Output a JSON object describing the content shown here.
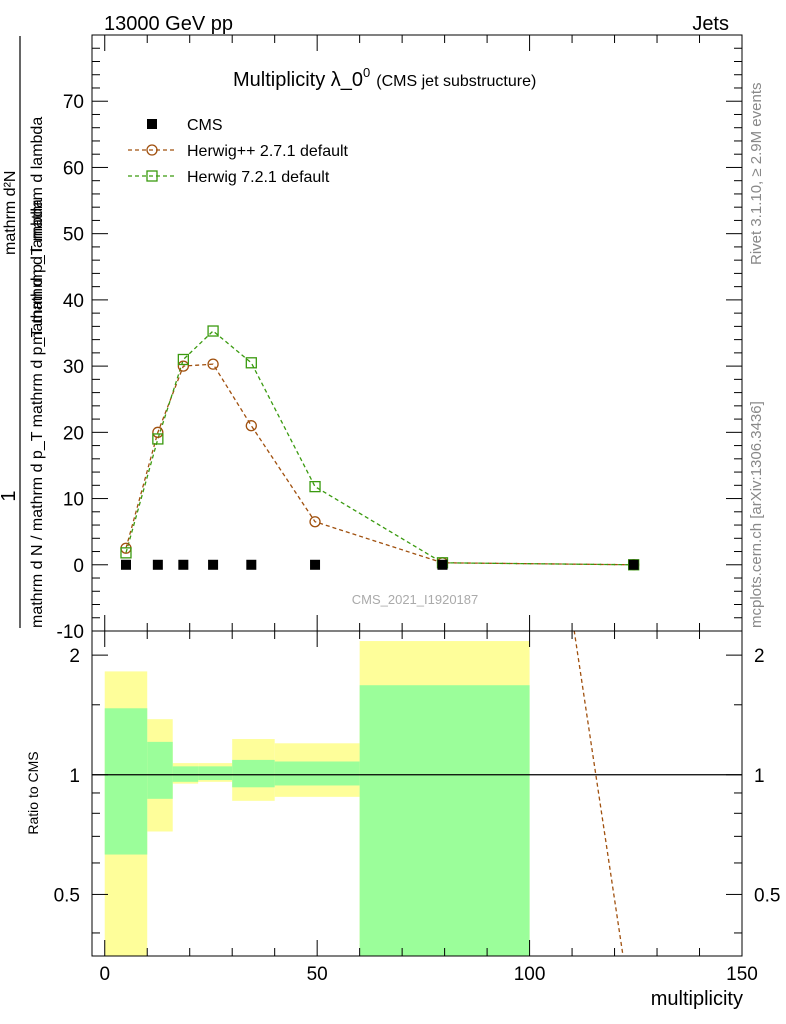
{
  "header": {
    "left": "13000 GeV pp",
    "right": "Jets"
  },
  "side_text": {
    "rivet": "Rivet 3.1.10, ≥ 2.9M events",
    "mcplots": "mcplots.cern.ch [arXiv:1306.3436]"
  },
  "analysis_id": "CMS_2021_I1920187",
  "colors": {
    "data": "#000000",
    "herwigpp": "#a0500e",
    "herwig7": "#3a9a0f",
    "band_inner": "#9bfe9a",
    "band_outer": "#fefe9a"
  },
  "chart_data": [
    {
      "type": "line",
      "title_main": "Multiplicity λ_0",
      "title_sup": "0",
      "title_sub": "(CMS jet substructure)",
      "ylabel_numerator": "1",
      "ylabel_denominator": "mathrm d N / mathrm d p_T mathrm d p_T mathrm d lambda",
      "ylabel_top": "mathrm d²N",
      "ylabel_top_full": "mathrm d p_T mathrm d lambda",
      "xlim": [
        -3,
        150
      ],
      "ylim": [
        -10,
        80
      ],
      "yticks": [
        -10,
        0,
        10,
        20,
        30,
        40,
        50,
        60,
        70
      ],
      "xticks": [
        0,
        50,
        100,
        150
      ],
      "legend_position": "top-left",
      "series": [
        {
          "name": "CMS",
          "marker": "filled-square",
          "x": [
            5,
            12.5,
            18.5,
            25.5,
            34.5,
            49.5,
            79.5,
            124.5
          ],
          "y": [
            0,
            0,
            0,
            0,
            0,
            0,
            0,
            0
          ]
        },
        {
          "name": "Herwig++ 2.7.1 default",
          "marker": "open-circle",
          "x": [
            5,
            12.5,
            18.5,
            25.5,
            34.5,
            49.5,
            79.5,
            124.5
          ],
          "y": [
            2.5,
            20,
            30,
            30.3,
            21,
            6.5,
            0.3,
            0
          ]
        },
        {
          "name": "Herwig 7.2.1 default",
          "marker": "open-square",
          "x": [
            5,
            12.5,
            18.5,
            25.5,
            34.5,
            49.5,
            79.5,
            124.5
          ],
          "y": [
            1.8,
            19,
            31,
            35.3,
            30.5,
            11.8,
            0.3,
            0
          ]
        }
      ]
    },
    {
      "type": "area",
      "ylabel": "Ratio to CMS",
      "xlabel": "multiplicity",
      "xlim": [
        -3,
        150
      ],
      "ylim": [
        0.35,
        2.3
      ],
      "yscale": "log",
      "yticks": [
        0.5,
        1,
        2
      ],
      "xticks": [
        0,
        50,
        100,
        150
      ],
      "bins": [
        {
          "x0": 0,
          "x1": 10,
          "inner": [
            0.63,
            1.47
          ],
          "outer": [
            0.35,
            1.82
          ]
        },
        {
          "x0": 10,
          "x1": 16,
          "inner": [
            0.87,
            1.21
          ],
          "outer": [
            0.72,
            1.38
          ]
        },
        {
          "x0": 16,
          "x1": 22,
          "inner": [
            0.96,
            1.05
          ],
          "outer": [
            0.95,
            1.07
          ]
        },
        {
          "x0": 22,
          "x1": 30,
          "inner": [
            0.97,
            1.05
          ],
          "outer": [
            0.96,
            1.07
          ]
        },
        {
          "x0": 30,
          "x1": 40,
          "inner": [
            0.93,
            1.09
          ],
          "outer": [
            0.86,
            1.23
          ]
        },
        {
          "x0": 40,
          "x1": 60,
          "inner": [
            0.94,
            1.08
          ],
          "outer": [
            0.88,
            1.2
          ]
        },
        {
          "x0": 60,
          "x1": 100,
          "inner": [
            0.35,
            1.68
          ],
          "outer": [
            0.35,
            2.17
          ]
        }
      ],
      "series": [
        {
          "name": "Herwig++ 2.7.1 default",
          "x": [
            110,
            122
          ],
          "y": [
            2.5,
            0.35
          ]
        }
      ]
    }
  ]
}
